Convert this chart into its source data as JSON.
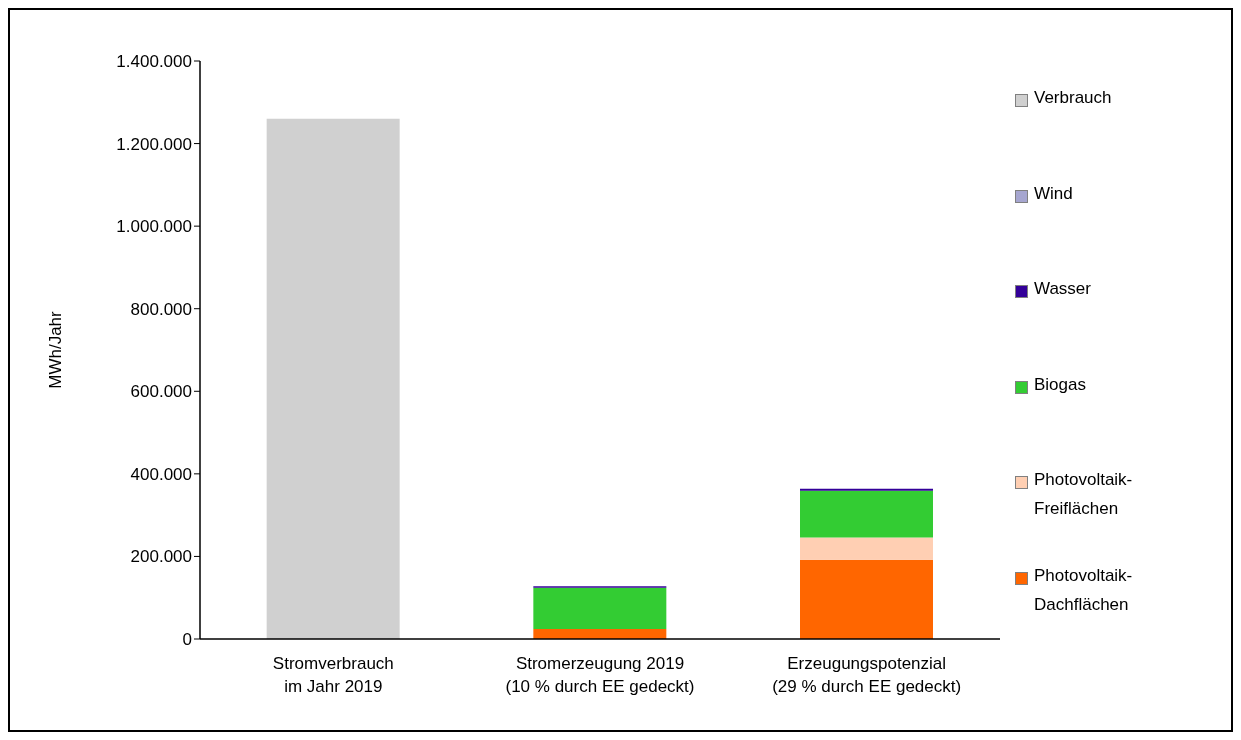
{
  "chart_data": {
    "type": "bar",
    "stacked": true,
    "ylabel": "MWh/Jahr",
    "categories": [
      "Stromverbrauch\nim Jahr 2019",
      "Stromerzeugung 2019\n(10 % durch EE gedeckt)",
      "Erzeugungspotenzial\n(29 % durch EE gedeckt)"
    ],
    "series": [
      {
        "name": "Photovoltaik-Dachflächen",
        "color": "#ff6600",
        "values": [
          null,
          24000,
          192000
        ]
      },
      {
        "name": "Photovoltaik-Freiflächen",
        "color": "#ffcfb3",
        "values": [
          null,
          null,
          54000
        ]
      },
      {
        "name": "Biogas",
        "color": "#33cc33",
        "values": [
          null,
          100000,
          113000
        ]
      },
      {
        "name": "Wasser",
        "color": "#330099",
        "values": [
          null,
          4000,
          5000
        ]
      },
      {
        "name": "Wind",
        "color": "#a6a6d0",
        "values": [
          null,
          null,
          null
        ]
      },
      {
        "name": "Verbrauch",
        "color": "#d0d0d0",
        "values": [
          1260000,
          null,
          null
        ]
      }
    ],
    "ylim": [
      0,
      1400000
    ],
    "yticks": [
      0,
      {
        "value": 200000,
        "label": "200.000"
      },
      {
        "value": 400000,
        "label": "400.000"
      },
      {
        "value": 600000,
        "label": "600.000"
      },
      {
        "value": 800000,
        "label": "800.000"
      },
      {
        "value": 1000000,
        "label": "1.000.000"
      },
      {
        "value": 1200000,
        "label": "1.200.000"
      },
      {
        "value": 1400000,
        "label": "1.400.000"
      }
    ],
    "grid": false,
    "legend": "right"
  }
}
